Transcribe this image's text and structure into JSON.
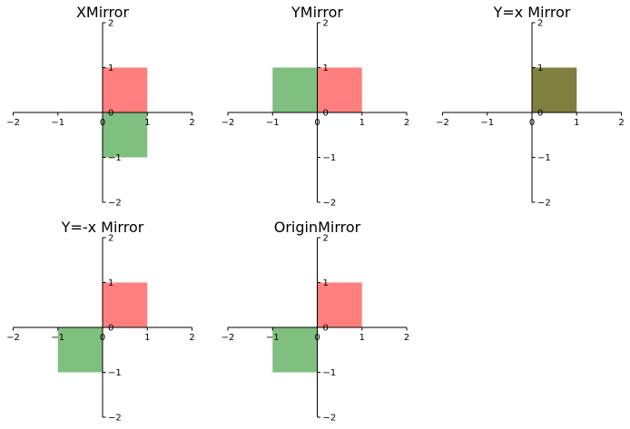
{
  "chart_data": [
    {
      "type": "area",
      "title": "XMirror",
      "xlim": [
        -2,
        2
      ],
      "ylim": [
        -2,
        2
      ],
      "xticks": [
        -2,
        -1,
        0,
        1,
        2
      ],
      "yticks": [
        -2,
        -1,
        0,
        1,
        2
      ],
      "tick_labels": [
        "−2",
        "−1",
        "0",
        "1",
        "2"
      ],
      "grid": false,
      "series": [
        {
          "x0": 0,
          "y0": 0,
          "x1": 1,
          "y1": 1,
          "color": "#ff0000",
          "alpha": 0.5
        },
        {
          "x0": 0,
          "y0": -1,
          "x1": 1,
          "y1": 0,
          "color": "#008000",
          "alpha": 0.5
        }
      ]
    },
    {
      "type": "area",
      "title": "YMirror",
      "xlim": [
        -2,
        2
      ],
      "ylim": [
        -2,
        2
      ],
      "xticks": [
        -2,
        -1,
        0,
        1,
        2
      ],
      "yticks": [
        -2,
        -1,
        0,
        1,
        2
      ],
      "tick_labels": [
        "−2",
        "−1",
        "0",
        "1",
        "2"
      ],
      "grid": false,
      "series": [
        {
          "x0": 0,
          "y0": 0,
          "x1": 1,
          "y1": 1,
          "color": "#ff0000",
          "alpha": 0.5
        },
        {
          "x0": -1,
          "y0": 0,
          "x1": 0,
          "y1": 1,
          "color": "#008000",
          "alpha": 0.5
        }
      ]
    },
    {
      "type": "area",
      "title": "Y=x Mirror",
      "xlim": [
        -2,
        2
      ],
      "ylim": [
        -2,
        2
      ],
      "xticks": [
        -2,
        -1,
        0,
        1,
        2
      ],
      "yticks": [
        -2,
        -1,
        0,
        1,
        2
      ],
      "tick_labels": [
        "−2",
        "−1",
        "0",
        "1",
        "2"
      ],
      "grid": false,
      "series": [
        {
          "x0": 0,
          "y0": 0,
          "x1": 1,
          "y1": 1,
          "color": "#ff0000",
          "alpha": 0.5
        },
        {
          "x0": 0,
          "y0": 0,
          "x1": 1,
          "y1": 1,
          "color": "#008000",
          "alpha": 0.5
        }
      ]
    },
    {
      "type": "area",
      "title": "Y=-x Mirror",
      "xlim": [
        -2,
        2
      ],
      "ylim": [
        -2,
        2
      ],
      "xticks": [
        -2,
        -1,
        0,
        1,
        2
      ],
      "yticks": [
        -2,
        -1,
        0,
        1,
        2
      ],
      "tick_labels": [
        "−2",
        "−1",
        "0",
        "1",
        "2"
      ],
      "grid": false,
      "series": [
        {
          "x0": 0,
          "y0": 0,
          "x1": 1,
          "y1": 1,
          "color": "#ff0000",
          "alpha": 0.5
        },
        {
          "x0": -1,
          "y0": -1,
          "x1": 0,
          "y1": 0,
          "color": "#008000",
          "alpha": 0.5
        }
      ]
    },
    {
      "type": "area",
      "title": "OriginMirror",
      "xlim": [
        -2,
        2
      ],
      "ylim": [
        -2,
        2
      ],
      "xticks": [
        -2,
        -1,
        0,
        1,
        2
      ],
      "yticks": [
        -2,
        -1,
        0,
        1,
        2
      ],
      "tick_labels": [
        "−2",
        "−1",
        "0",
        "1",
        "2"
      ],
      "grid": false,
      "series": [
        {
          "x0": 0,
          "y0": 0,
          "x1": 1,
          "y1": 1,
          "color": "#ff0000",
          "alpha": 0.5
        },
        {
          "x0": -1,
          "y0": -1,
          "x1": 0,
          "y1": 0,
          "color": "#008000",
          "alpha": 0.5
        }
      ]
    }
  ]
}
